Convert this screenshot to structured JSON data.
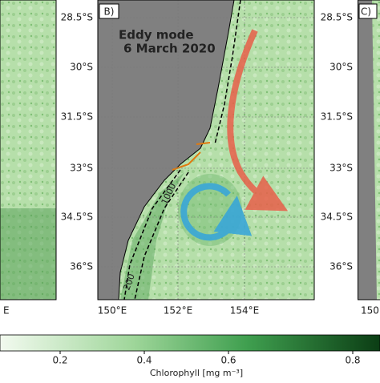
{
  "panels": [
    {
      "label": "B)",
      "title": "Eddy mode",
      "subtitle": "6 March 2020",
      "contour_labels": [
        "1000",
        "200"
      ]
    },
    {
      "label": "C)"
    }
  ],
  "latitude_labels": [
    "28.5°S",
    "30°S",
    "31.5°S",
    "33°S",
    "34.5°S",
    "36°S"
  ],
  "longitude_labels": [
    "150°E",
    "152°E",
    "154°E"
  ],
  "left_partial_label": "E",
  "right_partial_label": "150°",
  "colorbar": {
    "ticks": [
      "0.2",
      "0.4",
      "0.6",
      "0.8"
    ],
    "label": "Chlorophyll [mg m⁻³]"
  }
}
